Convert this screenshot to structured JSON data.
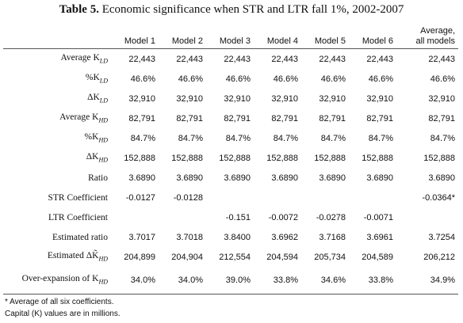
{
  "title": {
    "bold": "Table 5.",
    "rest": " Economic significance when STR and LTR fall 1%, 2002-2007"
  },
  "columns": [
    "Model 1",
    "Model 2",
    "Model 3",
    "Model 4",
    "Model 5",
    "Model 6"
  ],
  "last_column": {
    "line1": "Average,",
    "line2": "all models"
  },
  "rows": [
    {
      "label": "Average K",
      "sub": "LD",
      "values": [
        "22,443",
        "22,443",
        "22,443",
        "22,443",
        "22,443",
        "22,443",
        "22,443"
      ]
    },
    {
      "label": "%K",
      "sub": "LD",
      "values": [
        "46.6%",
        "46.6%",
        "46.6%",
        "46.6%",
        "46.6%",
        "46.6%",
        "46.6%"
      ]
    },
    {
      "label": "ΔK",
      "sub": "LD",
      "values": [
        "32,910",
        "32,910",
        "32,910",
        "32,910",
        "32,910",
        "32,910",
        "32,910"
      ]
    },
    {
      "label": "Average K",
      "sub": "HD",
      "values": [
        "82,791",
        "82,791",
        "82,791",
        "82,791",
        "82,791",
        "82,791",
        "82,791"
      ]
    },
    {
      "label": "%K",
      "sub": "HD",
      "values": [
        "84.7%",
        "84.7%",
        "84.7%",
        "84.7%",
        "84.7%",
        "84.7%",
        "84.7%"
      ]
    },
    {
      "label": "ΔK",
      "sub": "HD",
      "values": [
        "152,888",
        "152,888",
        "152,888",
        "152,888",
        "152,888",
        "152,888",
        "152,888"
      ]
    },
    {
      "label": "Ratio",
      "sub": "",
      "values": [
        "3.6890",
        "3.6890",
        "3.6890",
        "3.6890",
        "3.6890",
        "3.6890",
        "3.6890"
      ]
    },
    {
      "label": "STR Coefficient",
      "sub": "",
      "values": [
        "-0.0127",
        "-0.0128",
        "",
        "",
        "",
        "",
        "-0.0364*"
      ]
    },
    {
      "label": "LTR Coefficient",
      "sub": "",
      "values": [
        "",
        "",
        "-0.151",
        "-0.0072",
        "-0.0278",
        "-0.0071",
        ""
      ]
    },
    {
      "label": "Estimated ratio",
      "sub": "",
      "values": [
        "3.7017",
        "3.7018",
        "3.8400",
        "3.6962",
        "3.7168",
        "3.6961",
        "3.7254"
      ]
    },
    {
      "label": "Estimated ΔK̃",
      "sub": "HD",
      "values": [
        "204,899",
        "204,904",
        "212,554",
        "204,594",
        "205,734",
        "204,589",
        "206,212"
      ]
    },
    {
      "label": "Over-expansion of K",
      "sub": "HD",
      "values": [
        "34.0%",
        "34.0%",
        "39.0%",
        "33.8%",
        "34.6%",
        "33.8%",
        "34.9%"
      ]
    }
  ],
  "notes": [
    "* Average of all six coefficients.",
    "Capital (K) values are in millions."
  ]
}
